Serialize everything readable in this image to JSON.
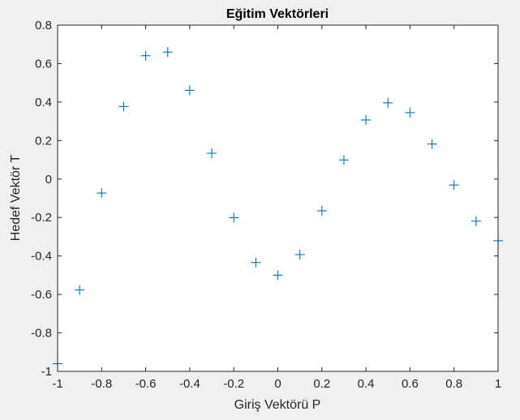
{
  "chart_data": {
    "type": "scatter",
    "title": "Eğitim Vektörleri",
    "xlabel": "Giriş Vektörü P",
    "ylabel": "Hedef Vektör T",
    "xlim": [
      -1,
      1
    ],
    "ylim": [
      -1,
      0.8
    ],
    "xticks": [
      -1,
      -0.8,
      -0.6,
      -0.4,
      -0.2,
      0,
      0.2,
      0.4,
      0.6,
      0.8,
      1
    ],
    "xtick_labels": [
      "-1",
      "-0.8",
      "-0.6",
      "-0.4",
      "-0.2",
      "0",
      "0.2",
      "0.4",
      "0.6",
      "0.8",
      "1"
    ],
    "yticks": [
      -1,
      -0.8,
      -0.6,
      -0.4,
      -0.2,
      0,
      0.2,
      0.4,
      0.6,
      0.8
    ],
    "ytick_labels": [
      "-1",
      "-0.8",
      "-0.6",
      "-0.4",
      "-0.2",
      "0",
      "0.2",
      "0.4",
      "0.6",
      "0.8"
    ],
    "grid": false,
    "marker": "plus",
    "marker_color": "#0072bd",
    "x": [
      -1,
      -0.9,
      -0.8,
      -0.7,
      -0.6,
      -0.5,
      -0.4,
      -0.3,
      -0.2,
      -0.1,
      0,
      0.1,
      0.2,
      0.3,
      0.4,
      0.5,
      0.6,
      0.7,
      0.8,
      0.9,
      1
    ],
    "y": [
      -0.96,
      -0.577,
      -0.073,
      0.377,
      0.641,
      0.66,
      0.461,
      0.134,
      -0.201,
      -0.434,
      -0.5,
      -0.393,
      -0.165,
      0.099,
      0.307,
      0.396,
      0.345,
      0.182,
      -0.031,
      -0.219,
      -0.321
    ]
  }
}
